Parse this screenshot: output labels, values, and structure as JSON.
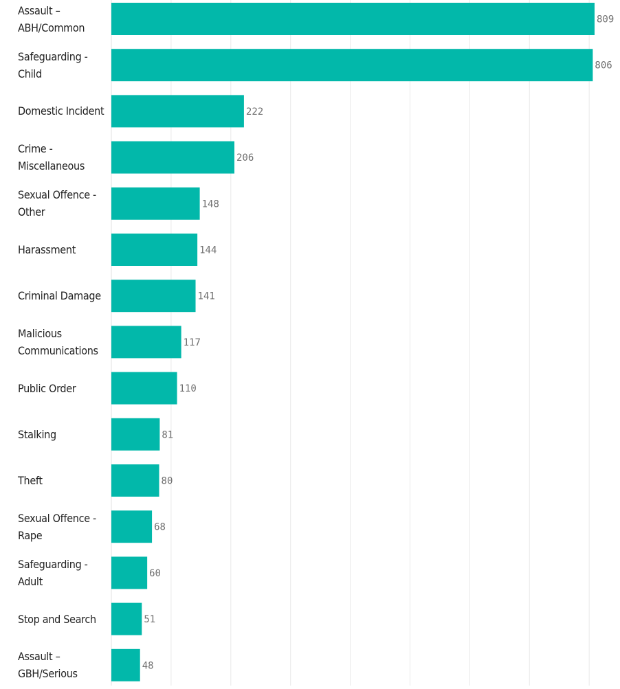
{
  "chart_data": {
    "type": "bar",
    "orientation": "horizontal",
    "title": "",
    "xlabel": "",
    "ylabel": "",
    "xlim": [
      0,
      850
    ],
    "grid": true,
    "legend": "none",
    "colors": {
      "bar": "#02b8aa",
      "grid": "#e9e9e9",
      "value_label": "#6f6f6f",
      "category_label": "#222222"
    },
    "categories": [
      "Assault – ABH/Common",
      "Safeguarding - Child",
      "Domestic Incident",
      "Crime - Miscellaneous",
      "Sexual Offence - Other",
      "Harassment",
      "Criminal Damage",
      "Malicious Communications",
      "Public Order",
      "Stalking",
      "Theft",
      "Sexual Offence - Rape",
      "Safeguarding - Adult",
      "Stop and Search",
      "Assault – GBH/Serious"
    ],
    "values": [
      809,
      806,
      222,
      206,
      148,
      144,
      141,
      117,
      110,
      81,
      80,
      68,
      60,
      51,
      48
    ],
    "value_labels": [
      "809",
      "806",
      "222",
      "206",
      "148",
      "144",
      "141",
      "117",
      "110",
      "81",
      "80",
      "68",
      "60",
      "51",
      "48"
    ]
  }
}
